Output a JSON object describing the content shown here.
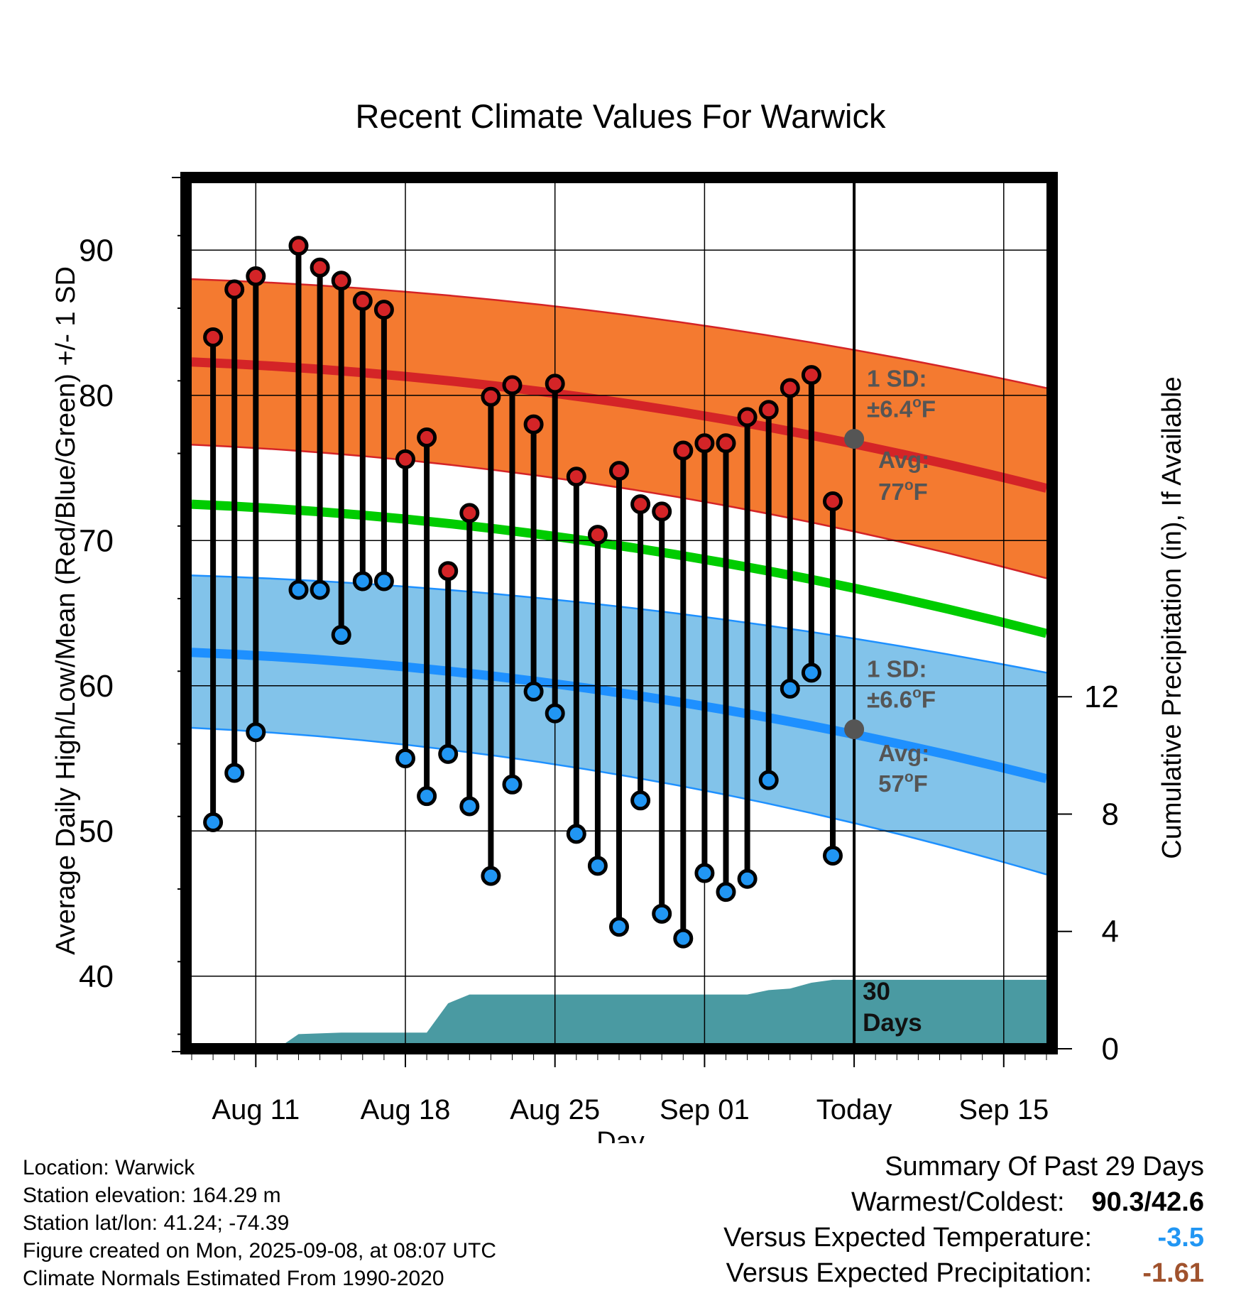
{
  "chart_data": {
    "type": "line",
    "title": "Recent Climate Values For Warwick",
    "xlabel": "Day",
    "ylabel_left": "Average Daily High/Low/Mean (Red/Blue/Green) +/- 1 SD",
    "ylabel_right": "Cumulative Precipitation (in), If Available",
    "ylim_left": [
      35,
      95
    ],
    "ylim_right": [
      0,
      29.7
    ],
    "yticks_left": [
      40,
      50,
      60,
      70,
      80,
      90
    ],
    "yticks_right": [
      0,
      4,
      8,
      12
    ],
    "xticks": [
      "Aug 11",
      "Aug 18",
      "Aug 25",
      "Sep 01",
      "Today",
      "Sep 15"
    ],
    "x_range": [
      "Aug 08",
      "Sep 17"
    ],
    "today": "Sep 08",
    "grid": true,
    "days": [
      "Aug 09",
      "Aug 10",
      "Aug 11",
      "Aug 12",
      "Aug 13",
      "Aug 14",
      "Aug 15",
      "Aug 16",
      "Aug 17",
      "Aug 18",
      "Aug 19",
      "Aug 20",
      "Aug 21",
      "Aug 22",
      "Aug 23",
      "Aug 24",
      "Aug 25",
      "Aug 26",
      "Aug 27",
      "Aug 28",
      "Aug 29",
      "Aug 30",
      "Aug 31",
      "Sep 01",
      "Sep 02",
      "Sep 03",
      "Sep 04",
      "Sep 05",
      "Sep 06",
      "Sep 07"
    ],
    "observed_high": [
      84.0,
      87.3,
      88.2,
      null,
      90.3,
      88.8,
      87.9,
      86.5,
      85.9,
      75.6,
      77.1,
      67.9,
      71.9,
      79.9,
      80.7,
      78.0,
      80.8,
      74.4,
      70.4,
      74.8,
      72.5,
      72.0,
      76.2,
      76.7,
      76.7,
      78.5,
      79.0,
      80.5,
      81.4,
      72.7
    ],
    "observed_low": [
      50.6,
      54.0,
      56.8,
      null,
      66.6,
      66.6,
      63.5,
      67.2,
      67.2,
      55.0,
      52.4,
      55.3,
      51.7,
      46.9,
      53.2,
      59.6,
      58.1,
      49.8,
      47.6,
      43.4,
      52.1,
      44.3,
      42.6,
      47.1,
      45.8,
      46.7,
      53.5,
      59.8,
      60.9,
      48.3
    ],
    "normal_high": [
      82.3,
      73.6
    ],
    "normal_high_sd_band": [
      [
        88.0,
        76.6
      ],
      [
        80.5,
        67.4
      ]
    ],
    "normal_mean": [
      72.5,
      63.6
    ],
    "normal_low": [
      62.3,
      53.6
    ],
    "normal_low_sd_band": [
      [
        67.6,
        57.1
      ],
      [
        60.9,
        47.0
      ]
    ],
    "band_dates": [
      "Aug 08",
      "Sep 17"
    ],
    "cumulative_precip": {
      "dates": [
        "Aug 08",
        "Aug 11",
        "Aug 12",
        "Aug 13",
        "Aug 15",
        "Aug 19",
        "Aug 20",
        "Aug 21",
        "Sep 03",
        "Sep 04",
        "Sep 05",
        "Sep 06",
        "Sep 07",
        "Sep 17"
      ],
      "values": [
        0.0,
        0.0,
        0.0,
        0.5,
        0.55,
        0.55,
        1.55,
        1.85,
        1.85,
        2.0,
        2.05,
        2.25,
        2.35,
        2.35
      ]
    },
    "annotations": {
      "high_sd_label_line1": "1 SD:",
      "high_sd_label_line2": "±6.4",
      "high_avg_label_line1": "Avg:",
      "high_avg_label_line2": "77",
      "high_avg_value": 77,
      "low_sd_label_line1": "1 SD:",
      "low_sd_label_line2": "±6.6",
      "low_avg_label_line1": "Avg:",
      "low_avg_label_line2": "57",
      "low_avg_value": 57,
      "degree_unit_sup": "o",
      "degree_unit": "F",
      "days_label_line1": "30",
      "days_label_line2": "Days"
    },
    "colors": {
      "high_band": "#f47a30",
      "high_line": "#d42427",
      "mean_line": "#00cc00",
      "low_band": "#82c3ea",
      "low_line": "#1e90ff",
      "precip": "#4a9aa2",
      "high_marker": "#d42427",
      "low_marker": "#2196f3",
      "annotation": "#555555"
    }
  },
  "footer": {
    "location": "Location: Warwick",
    "elevation": "Station elevation: 164.29 m",
    "latlon": "Station lat/lon: 41.24; -74.39",
    "created": "Figure created on Mon, 2025-09-08, at 08:07 UTC",
    "normals": "Climate Normals Estimated From 1990-2020"
  },
  "summary": {
    "title": "Summary Of Past 29 Days",
    "warm_cold_label": "Warmest/Coldest:",
    "warm_cold_value": "90.3/42.6",
    "temp_label": "Versus Expected Temperature:",
    "temp_value": "-3.5",
    "temp_color": "#2196f3",
    "precip_label": "Versus Expected Precipitation:",
    "precip_value": "-1.61",
    "precip_color": "#a0522d"
  }
}
